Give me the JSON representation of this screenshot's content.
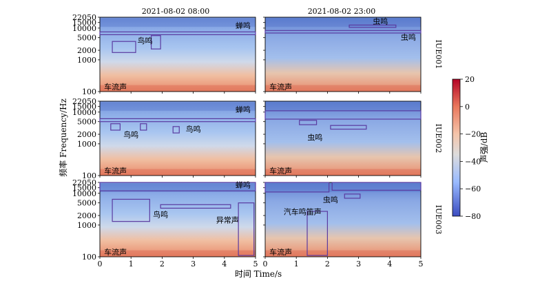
{
  "chart_data": {
    "type": "heatmap",
    "title_left": "2021-08-02 08:00",
    "title_right": "2021-08-02 23:00",
    "xlabel": "时间 Time/s",
    "ylabel": "频率 Frequency/Hz",
    "x_range": [
      0,
      5
    ],
    "x_ticks": [
      "0",
      "1",
      "2",
      "3",
      "4",
      "5"
    ],
    "y_scale": "log",
    "y_range": [
      100,
      22050
    ],
    "y_ticks": [
      "100",
      "1000",
      "2000",
      "5000",
      "10000",
      "15000",
      "22050"
    ],
    "colorbar": {
      "label": "声强/dB",
      "range": [
        -80,
        20
      ],
      "ticks": [
        "20",
        "0",
        "−20",
        "−40",
        "−60",
        "−80"
      ],
      "colormap": "coolwarm"
    },
    "rows": [
      "IUE001",
      "IUE002",
      "IUE003"
    ],
    "panels": [
      {
        "row": 0,
        "col": 0,
        "annotations": [
          {
            "text": "蝉鸣",
            "x": 4.6,
            "y": 10000
          },
          {
            "text": "鸟鸣",
            "x": 1.45,
            "y": 3300
          },
          {
            "text": "车流声",
            "x": 0.5,
            "y": 115
          }
        ],
        "boxes": [
          {
            "x0": 0,
            "x1": 5,
            "y0": 6200,
            "y1": 7600
          },
          {
            "x0": 0.4,
            "x1": 1.15,
            "y0": 1700,
            "y1": 3800
          },
          {
            "x0": 1.65,
            "x1": 1.95,
            "y0": 2200,
            "y1": 5800
          }
        ]
      },
      {
        "row": 0,
        "col": 1,
        "annotations": [
          {
            "text": "虫鸣",
            "x": 3.7,
            "y": 13500
          },
          {
            "text": "虫鸣",
            "x": 4.6,
            "y": 4200
          },
          {
            "text": "车流声",
            "x": 0.5,
            "y": 115
          }
        ],
        "boxes": [
          {
            "x0": 0,
            "x1": 5,
            "y0": 7000,
            "y1": 8400
          },
          {
            "x0": 2.7,
            "x1": 4.2,
            "y0": 10500,
            "y1": 12500
          }
        ]
      },
      {
        "row": 1,
        "col": 0,
        "annotations": [
          {
            "text": "蝉鸣",
            "x": 4.6,
            "y": 10000
          },
          {
            "text": "鸟鸣",
            "x": 1.0,
            "y": 1600
          },
          {
            "text": "鸟鸣",
            "x": 3.0,
            "y": 2400
          },
          {
            "text": "车流声",
            "x": 0.5,
            "y": 115
          }
        ],
        "boxes": [
          {
            "x0": 0,
            "x1": 5,
            "y0": 5000,
            "y1": 6200
          },
          {
            "x0": 0.35,
            "x1": 0.65,
            "y0": 2700,
            "y1": 4300
          },
          {
            "x0": 1.3,
            "x1": 1.5,
            "y0": 2700,
            "y1": 4300
          },
          {
            "x0": 2.35,
            "x1": 2.55,
            "y0": 2200,
            "y1": 3500
          }
        ]
      },
      {
        "row": 1,
        "col": 1,
        "annotations": [
          {
            "text": "虫鸣",
            "x": 1.6,
            "y": 1300
          },
          {
            "text": "车流声",
            "x": 0.5,
            "y": 115
          }
        ],
        "boxes": [
          {
            "x0": 0,
            "x1": 5,
            "y0": 6000,
            "y1": 11000
          },
          {
            "x0": 1.1,
            "x1": 1.65,
            "y0": 4000,
            "y1": 5500
          },
          {
            "x0": 2.1,
            "x1": 3.25,
            "y0": 2900,
            "y1": 3800
          }
        ]
      },
      {
        "row": 2,
        "col": 0,
        "annotations": [
          {
            "text": "蝉鸣",
            "x": 4.6,
            "y": 15000
          },
          {
            "text": "鸟鸣",
            "x": 1.95,
            "y": 1750
          },
          {
            "text": "异常声",
            "x": 4.1,
            "y": 1200
          },
          {
            "text": "车流声",
            "x": 0.5,
            "y": 115
          }
        ],
        "boxes": [
          {
            "x0": 0,
            "x1": 5,
            "y0": 12000,
            "y1": 22050
          },
          {
            "x0": 0.4,
            "x1": 1.6,
            "y0": 1300,
            "y1": 6500
          },
          {
            "x0": 1.95,
            "x1": 4.2,
            "y0": 3400,
            "y1": 4400
          },
          {
            "x0": 4.45,
            "x1": 4.95,
            "y0": 110,
            "y1": 5000
          }
        ]
      },
      {
        "row": 2,
        "col": 1,
        "annotations": [
          {
            "text": "虫鸣",
            "x": 2.1,
            "y": 5200
          },
          {
            "text": "汽车鸣笛声",
            "x": 1.2,
            "y": 2150
          },
          {
            "text": "车流声",
            "x": 0.5,
            "y": 115
          }
        ],
        "boxes": [
          {
            "x0": 0,
            "x1": 2.05,
            "y0": 11000,
            "y1": 22050
          },
          {
            "x0": 2.15,
            "x1": 5,
            "y0": 12500,
            "y1": 22050
          },
          {
            "x0": 2.55,
            "x1": 3.05,
            "y0": 7000,
            "y1": 9500
          },
          {
            "x0": 1.35,
            "x1": 2.0,
            "y0": 110,
            "y1": 2700
          }
        ]
      }
    ]
  }
}
